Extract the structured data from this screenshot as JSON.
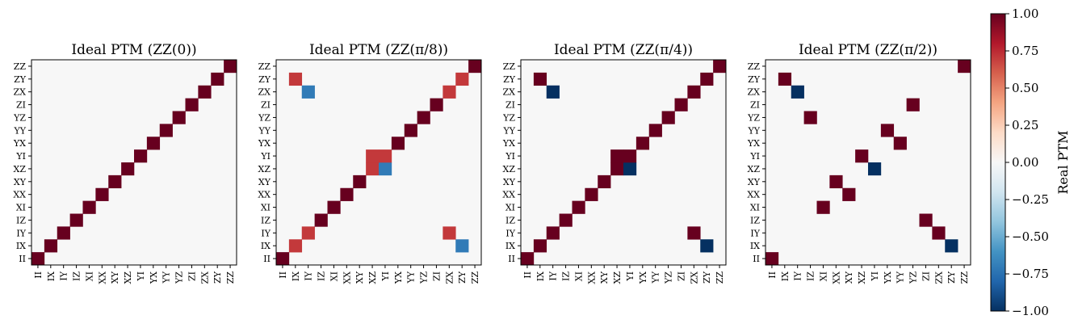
{
  "chart_data": {
    "type": "heatmap",
    "basis_labels": [
      "II",
      "IX",
      "IY",
      "IZ",
      "XI",
      "XX",
      "XY",
      "XZ",
      "YI",
      "YX",
      "YY",
      "YZ",
      "ZI",
      "ZX",
      "ZY",
      "ZZ"
    ],
    "colormap": {
      "name": "RdBu_r",
      "vmin": -1.0,
      "vmax": 1.0
    },
    "colorbar": {
      "label": "Real PTM",
      "ticks": [
        "1.00",
        "0.75",
        "0.50",
        "0.25",
        "0.00",
        "−0.25",
        "−0.50",
        "−0.75",
        "−1.00"
      ]
    },
    "panels": [
      {
        "title": "Ideal PTM (ZZ(0))",
        "entries": [
          [
            0,
            0,
            1
          ],
          [
            1,
            1,
            1
          ],
          [
            2,
            2,
            1
          ],
          [
            3,
            3,
            1
          ],
          [
            4,
            4,
            1
          ],
          [
            5,
            5,
            1
          ],
          [
            6,
            6,
            1
          ],
          [
            7,
            7,
            1
          ],
          [
            8,
            8,
            1
          ],
          [
            9,
            9,
            1
          ],
          [
            10,
            10,
            1
          ],
          [
            11,
            11,
            1
          ],
          [
            12,
            12,
            1
          ],
          [
            13,
            13,
            1
          ],
          [
            14,
            14,
            1
          ],
          [
            15,
            15,
            1
          ]
        ]
      },
      {
        "title": "Ideal PTM (ZZ(π/8))",
        "entries": [
          [
            0,
            0,
            1
          ],
          [
            1,
            1,
            0.707
          ],
          [
            1,
            14,
            -0.707
          ],
          [
            2,
            2,
            0.707
          ],
          [
            2,
            13,
            0.707
          ],
          [
            3,
            3,
            1
          ],
          [
            4,
            4,
            1
          ],
          [
            5,
            5,
            1
          ],
          [
            6,
            6,
            1
          ],
          [
            7,
            7,
            0.707
          ],
          [
            7,
            8,
            -0.707
          ],
          [
            8,
            7,
            0.707
          ],
          [
            8,
            8,
            0.707
          ],
          [
            9,
            9,
            1
          ],
          [
            10,
            10,
            1
          ],
          [
            11,
            11,
            1
          ],
          [
            12,
            12,
            1
          ],
          [
            13,
            13,
            0.707
          ],
          [
            13,
            2,
            -0.707
          ],
          [
            14,
            14,
            0.707
          ],
          [
            14,
            1,
            0.707
          ],
          [
            15,
            15,
            1
          ]
        ]
      },
      {
        "title": "Ideal PTM (ZZ(π/4))",
        "entries": [
          [
            0,
            0,
            1
          ],
          [
            1,
            1,
            1
          ],
          [
            1,
            14,
            -1
          ],
          [
            2,
            2,
            1
          ],
          [
            2,
            13,
            1
          ],
          [
            3,
            3,
            1
          ],
          [
            4,
            4,
            1
          ],
          [
            5,
            5,
            1
          ],
          [
            6,
            6,
            1
          ],
          [
            7,
            7,
            1
          ],
          [
            7,
            8,
            -1
          ],
          [
            8,
            7,
            1
          ],
          [
            8,
            8,
            1
          ],
          [
            9,
            9,
            1
          ],
          [
            10,
            10,
            1
          ],
          [
            11,
            11,
            1
          ],
          [
            12,
            12,
            1
          ],
          [
            13,
            13,
            1
          ],
          [
            13,
            2,
            -1
          ],
          [
            14,
            14,
            1
          ],
          [
            14,
            1,
            1
          ],
          [
            15,
            15,
            1
          ]
        ]
      },
      {
        "title": "Ideal PTM (ZZ(π/2))",
        "entries": [
          [
            0,
            0,
            1
          ],
          [
            1,
            14,
            -1
          ],
          [
            2,
            13,
            1
          ],
          [
            3,
            12,
            1
          ],
          [
            4,
            4,
            1
          ],
          [
            5,
            6,
            1
          ],
          [
            6,
            5,
            1
          ],
          [
            7,
            8,
            -1
          ],
          [
            8,
            7,
            1
          ],
          [
            9,
            10,
            1
          ],
          [
            10,
            9,
            1
          ],
          [
            11,
            3,
            1
          ],
          [
            12,
            11,
            1
          ],
          [
            13,
            2,
            -1
          ],
          [
            14,
            1,
            1
          ],
          [
            15,
            15,
            1
          ]
        ]
      }
    ]
  }
}
